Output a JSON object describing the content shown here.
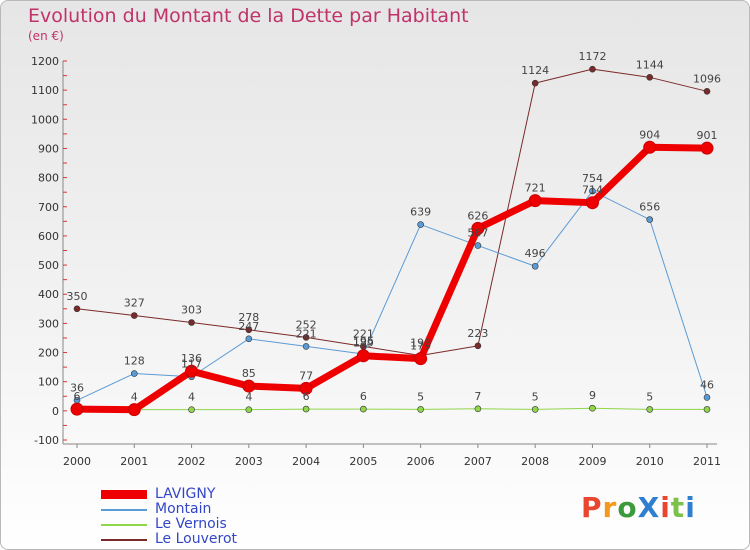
{
  "title": "Evolution du Montant de la Dette par Habitant",
  "unit": "(en €)",
  "logo": {
    "text": "ProXiti",
    "colors": [
      "#e8462f",
      "#f39a1c",
      "#3b9a3b",
      "#2f7fd0",
      "#e8462f",
      "#7cc24a",
      "#2f7fd0"
    ]
  },
  "chart_data": {
    "type": "line",
    "title": "Evolution du Montant de la Dette par Habitant",
    "ylabel": "(en €)",
    "xlabel": "",
    "ylim": [
      -100,
      1200
    ],
    "yticks": [
      -100,
      0,
      100,
      200,
      300,
      400,
      500,
      600,
      700,
      800,
      900,
      1000,
      1100,
      1200
    ],
    "x": [
      "2000",
      "2001",
      "2002",
      "2003",
      "2004",
      "2005",
      "2006",
      "2007",
      "2008",
      "2009",
      "2010",
      "2011"
    ],
    "grid": false,
    "legend_position": "bottom-left",
    "series": [
      {
        "name": "Le Vernois",
        "color": "#8fd64a",
        "width": 1,
        "values": [
          4,
          4,
          4,
          4,
          6,
          6,
          5,
          7,
          5,
          9,
          5,
          5
        ],
        "labels": [
          "",
          "",
          "4",
          "4",
          "6",
          "6",
          "5",
          "7",
          "5",
          "9",
          "5",
          ""
        ]
      },
      {
        "name": "Le Louverot",
        "color": "#7a2a2a",
        "width": 1,
        "values": [
          350,
          327,
          303,
          278,
          252,
          221,
          190,
          223,
          1124,
          1172,
          1144,
          1096
        ],
        "labels": [
          "350",
          "327",
          "303",
          "278",
          "252",
          "221",
          "190",
          "223",
          "1124",
          "1172",
          "1144",
          "1096"
        ]
      },
      {
        "name": "Montain",
        "color": "#5b9bd5",
        "width": 1,
        "values": [
          36,
          128,
          117,
          247,
          221,
          195,
          639,
          567,
          496,
          754,
          656,
          46
        ],
        "labels": [
          "36",
          "128",
          "117",
          "247",
          "221",
          "195",
          "639",
          "567",
          "496",
          "754",
          "656",
          "46"
        ]
      },
      {
        "name": "LAVIGNY",
        "color": "#ee0000",
        "width": 7,
        "values": [
          6,
          4,
          136,
          85,
          77,
          189,
          179,
          626,
          721,
          714,
          904,
          901
        ],
        "labels": [
          "6",
          "4",
          "136",
          "85",
          "77",
          "189",
          "179",
          "626",
          "721",
          "714",
          "904",
          "901"
        ]
      }
    ],
    "legend": [
      "LAVIGNY",
      "Montain",
      "Le Vernois",
      "Le Louverot"
    ]
  }
}
